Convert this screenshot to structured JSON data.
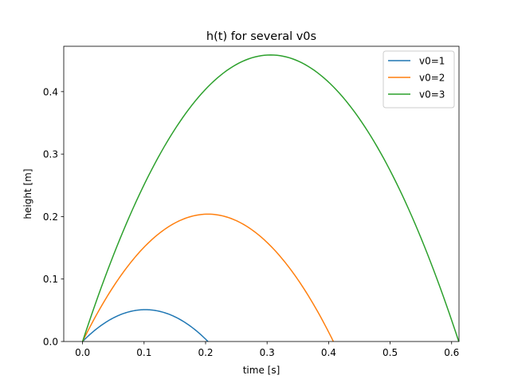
{
  "chart_data": {
    "type": "line",
    "title": "h(t) for several v0s",
    "xlabel": "time [s]",
    "ylabel": "height [m]",
    "xlim": [
      -0.0306,
      0.612
    ],
    "ylim": [
      0,
      0.4726
    ],
    "xticks": [
      0.0,
      0.1,
      0.2,
      0.3,
      0.4,
      0.5,
      0.6
    ],
    "xtick_labels": [
      "0.0",
      "0.1",
      "0.2",
      "0.3",
      "0.4",
      "0.5",
      "0.6"
    ],
    "yticks": [
      0.0,
      0.1,
      0.2,
      0.3,
      0.4
    ],
    "ytick_labels": [
      "0.0",
      "0.1",
      "0.2",
      "0.3",
      "0.4"
    ],
    "grid": false,
    "legend_position": "upper right",
    "gravity_model": "h = v0*t - 0.5*9.81*t^2, t from 0 to 2*v0/9.81",
    "series": [
      {
        "name": "v0=1",
        "v0": 1,
        "color": "#1f77b4",
        "x": [
          0.0,
          0.05,
          0.1019,
          0.15,
          0.2039
        ],
        "y": [
          0.0,
          0.0377,
          0.051,
          0.0396,
          0.0
        ]
      },
      {
        "name": "v0=2",
        "v0": 2,
        "color": "#ff7f0e",
        "x": [
          0.0,
          0.1,
          0.2039,
          0.3,
          0.4077
        ],
        "y": [
          0.0,
          0.151,
          0.2039,
          0.1586,
          0.0
        ]
      },
      {
        "name": "v0=3",
        "v0": 3,
        "color": "#2ca02c",
        "x": [
          0.0,
          0.1,
          0.2,
          0.3058,
          0.4,
          0.5,
          0.6116
        ],
        "y": [
          0.0,
          0.251,
          0.4038,
          0.4587,
          0.4152,
          0.2738,
          0.0
        ]
      }
    ]
  }
}
